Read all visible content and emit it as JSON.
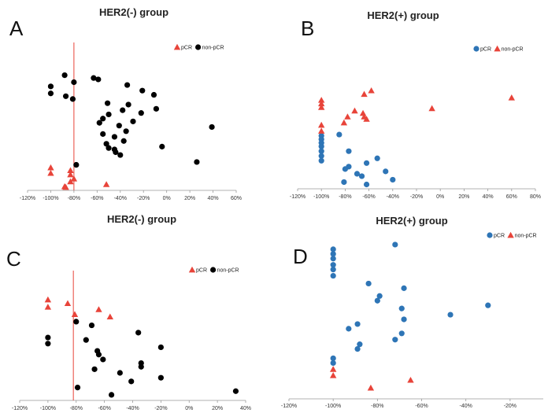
{
  "colors": {
    "red": "#e8443a",
    "black": "#000000",
    "blue": "#2e75b6",
    "vline": "#e8443a",
    "axis": "#999999"
  },
  "chart_data": [
    {
      "type": "scatter",
      "panel_label": "A",
      "title": "HER2(-) group",
      "xlim": [
        -120,
        60
      ],
      "xticks": [
        "-120%",
        "-100%",
        "-80%",
        "-60%",
        "-40%",
        "-20%",
        "0%",
        "20%",
        "40%",
        "60%"
      ],
      "ylim": [
        0,
        10
      ],
      "vline_x": -80,
      "legend": {
        "placement": "top-right",
        "entries": [
          {
            "label": "pCR",
            "marker": "triangle",
            "color": "#e8443a"
          },
          {
            "label": "non-pCR",
            "marker": "circle",
            "color": "#000000"
          }
        ]
      },
      "series": [
        {
          "name": "pCR",
          "marker": "triangle",
          "color": "#e8443a",
          "points": [
            [
              -100,
              1.4
            ],
            [
              -100,
              1.0
            ],
            [
              -83,
              1.2
            ],
            [
              -83,
              0.9
            ],
            [
              -80,
              0.6
            ],
            [
              -83,
              0.4
            ],
            [
              -88,
              0.05
            ],
            [
              -52,
              0.2
            ],
            [
              -87,
              0.0
            ]
          ]
        },
        {
          "name": "non-pCR",
          "marker": "circle",
          "color": "#000000",
          "points": [
            [
              -100,
              7.2
            ],
            [
              -100,
              6.7
            ],
            [
              -88,
              8.0
            ],
            [
              -80,
              7.5
            ],
            [
              -87,
              6.5
            ],
            [
              -81,
              6.3
            ],
            [
              -63,
              7.8
            ],
            [
              -59,
              7.7
            ],
            [
              -34,
              7.3
            ],
            [
              -21,
              6.9
            ],
            [
              -11,
              6.6
            ],
            [
              -51,
              6.0
            ],
            [
              -33,
              5.9
            ],
            [
              -38,
              5.5
            ],
            [
              -50,
              5.2
            ],
            [
              -55,
              4.9
            ],
            [
              -58,
              4.6
            ],
            [
              -22,
              5.3
            ],
            [
              -9,
              5.6
            ],
            [
              -41,
              4.4
            ],
            [
              -29,
              4.7
            ],
            [
              -35,
              4.0
            ],
            [
              -45,
              3.6
            ],
            [
              -37,
              3.3
            ],
            [
              -55,
              3.8
            ],
            [
              -52,
              3.1
            ],
            [
              -50,
              2.8
            ],
            [
              -44,
              2.5
            ],
            [
              -40,
              2.3
            ],
            [
              -45,
              2.7
            ],
            [
              -78,
              1.6
            ],
            [
              -4,
              2.9
            ],
            [
              39,
              4.3
            ],
            [
              26,
              1.8
            ]
          ]
        }
      ]
    },
    {
      "type": "scatter",
      "panel_label": "B",
      "title": "HER2(+) group",
      "xlim": [
        -120,
        80
      ],
      "xticks": [
        "-120%",
        "-100%",
        "-80%",
        "-60%",
        "-40%",
        "-20%",
        "0%",
        "20%",
        "40%",
        "60%",
        "80%"
      ],
      "ylim": [
        0,
        10
      ],
      "legend": {
        "placement": "top-right",
        "entries": [
          {
            "label": "pCR",
            "marker": "circle",
            "color": "#2e75b6"
          },
          {
            "label": "non-pCR",
            "marker": "triangle",
            "color": "#e8443a"
          }
        ]
      },
      "series": [
        {
          "name": "pCR",
          "marker": "circle",
          "color": "#2e75b6",
          "points": [
            [
              -100,
              4.2
            ],
            [
              -100,
              3.9
            ],
            [
              -100,
              3.6
            ],
            [
              -100,
              3.3
            ],
            [
              -100,
              2.9
            ],
            [
              -100,
              2.5
            ],
            [
              -100,
              2.1
            ],
            [
              -85,
              4.3
            ],
            [
              -77,
              2.9
            ],
            [
              -77,
              1.6
            ],
            [
              -80,
              1.4
            ],
            [
              -62,
              1.9
            ],
            [
              -53,
              2.3
            ],
            [
              -70,
              1.0
            ],
            [
              -66,
              0.8
            ],
            [
              -46,
              1.2
            ],
            [
              -40,
              0.5
            ],
            [
              -81,
              0.3
            ],
            [
              -62,
              0.1
            ]
          ]
        },
        {
          "name": "non-pCR",
          "marker": "triangle",
          "color": "#e8443a",
          "points": [
            [
              -100,
              7.2
            ],
            [
              -100,
              6.9
            ],
            [
              -100,
              6.6
            ],
            [
              -100,
              5.1
            ],
            [
              -100,
              4.6
            ],
            [
              -81,
              5.3
            ],
            [
              -78,
              5.8
            ],
            [
              -72,
              6.3
            ],
            [
              -65,
              6.1
            ],
            [
              -64,
              5.8
            ],
            [
              -62,
              5.6
            ],
            [
              -64,
              7.7
            ],
            [
              -58,
              8.0
            ],
            [
              -7,
              6.5
            ],
            [
              60,
              7.4
            ]
          ]
        }
      ]
    },
    {
      "type": "scatter",
      "panel_label": "C",
      "title": "HER2(-) group",
      "xlim": [
        -120,
        40
      ],
      "xticks": [
        "-120%",
        "-100%",
        "-80%",
        "-60%",
        "-40%",
        "-20%",
        "0%",
        "20%",
        "40%"
      ],
      "ylim": [
        0,
        10
      ],
      "vline_x": -82,
      "legend": {
        "placement": "top-right",
        "entries": [
          {
            "label": "pCR",
            "marker": "triangle",
            "color": "#e8443a"
          },
          {
            "label": "non-pCR",
            "marker": "circle",
            "color": "#000000"
          }
        ]
      },
      "series": [
        {
          "name": "pCR",
          "marker": "triangle",
          "color": "#e8443a",
          "points": [
            [
              -100,
              8.0
            ],
            [
              -100,
              7.4
            ],
            [
              -86,
              7.7
            ],
            [
              -81,
              6.8
            ],
            [
              -64,
              7.2
            ],
            [
              -56,
              6.6
            ]
          ]
        },
        {
          "name": "non-pCR",
          "marker": "circle",
          "color": "#000000",
          "points": [
            [
              -80,
              6.2
            ],
            [
              -69,
              5.9
            ],
            [
              -100,
              4.9
            ],
            [
              -100,
              4.4
            ],
            [
              -73,
              4.7
            ],
            [
              -36,
              5.3
            ],
            [
              -65,
              3.8
            ],
            [
              -64,
              3.5
            ],
            [
              -61,
              3.1
            ],
            [
              -20,
              4.1
            ],
            [
              -67,
              2.3
            ],
            [
              -49,
              2.0
            ],
            [
              -34,
              2.8
            ],
            [
              -34,
              2.5
            ],
            [
              -20,
              1.6
            ],
            [
              -41,
              1.3
            ],
            [
              -79,
              0.8
            ],
            [
              -55,
              0.2
            ],
            [
              33,
              0.5
            ]
          ]
        }
      ]
    },
    {
      "type": "scatter",
      "panel_label": "D",
      "title": "HER2(+) group",
      "xlim": [
        -120,
        -5
      ],
      "xticks": [
        "-120%",
        "-100%",
        "-80%",
        "-60%",
        "-40%",
        "-20%"
      ],
      "ylim": [
        0,
        10
      ],
      "legend": {
        "placement": "top-right",
        "entries": [
          {
            "label": "pCR",
            "marker": "circle",
            "color": "#2e75b6"
          },
          {
            "label": "non-pCR",
            "marker": "triangle",
            "color": "#e8443a"
          }
        ]
      },
      "series": [
        {
          "name": "pCR",
          "marker": "circle",
          "color": "#2e75b6",
          "points": [
            [
              -100,
              9.4
            ],
            [
              -100,
              9.1
            ],
            [
              -100,
              8.8
            ],
            [
              -100,
              8.4
            ],
            [
              -100,
              8.1
            ],
            [
              -100,
              7.7
            ],
            [
              -72,
              9.7
            ],
            [
              -84,
              7.2
            ],
            [
              -68,
              6.9
            ],
            [
              -79,
              6.4
            ],
            [
              -80,
              6.1
            ],
            [
              -30,
              5.8
            ],
            [
              -69,
              5.6
            ],
            [
              -47,
              5.2
            ],
            [
              -68,
              4.9
            ],
            [
              -89,
              4.6
            ],
            [
              -93,
              4.3
            ],
            [
              -69,
              4.0
            ],
            [
              -72,
              3.6
            ],
            [
              -88,
              3.3
            ],
            [
              -89,
              3.0
            ],
            [
              -100,
              2.4
            ],
            [
              -100,
              2.1
            ]
          ]
        },
        {
          "name": "non-pCR",
          "marker": "triangle",
          "color": "#e8443a",
          "points": [
            [
              -100,
              1.7
            ],
            [
              -100,
              1.3
            ],
            [
              -65,
              1.0
            ],
            [
              -83,
              0.5
            ]
          ]
        }
      ]
    }
  ]
}
